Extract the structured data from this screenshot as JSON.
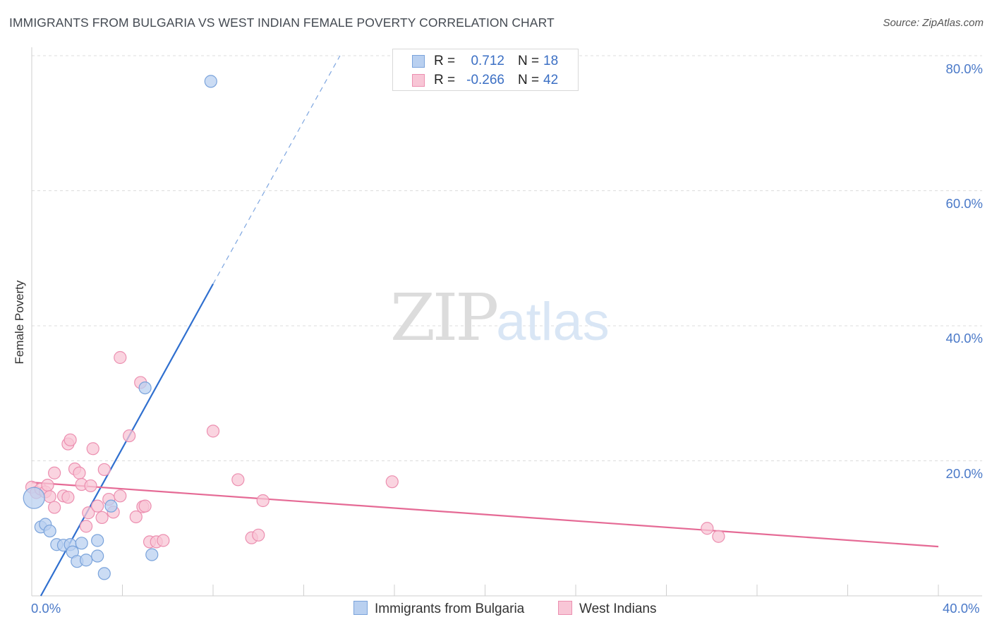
{
  "title": "IMMIGRANTS FROM BULGARIA VS WEST INDIAN FEMALE POVERTY CORRELATION CHART",
  "source": "Source: ZipAtlas.com",
  "watermark": {
    "zip": "ZIP",
    "atlas": "atlas"
  },
  "legend": {
    "rows": [
      {
        "r_label": "R =",
        "r_value": "0.712",
        "n_label": "N =",
        "n_value": "18"
      },
      {
        "r_label": "R =",
        "r_value": "-0.266",
        "n_label": "N =",
        "n_value": "42"
      }
    ]
  },
  "bottom_legend": [
    "Immigrants from Bulgaria",
    "West Indians"
  ],
  "colors": {
    "blue_fill": "#b9d0f0",
    "blue_stroke": "#7aa3db",
    "blue_line": "#2f6fcf",
    "pink_fill": "#f8c6d6",
    "pink_stroke": "#ec8fb0",
    "pink_line": "#e56a95",
    "tick_text": "#4a79c8",
    "grid": "#dcdcdc"
  },
  "chart_data": {
    "type": "scatter",
    "title": "IMMIGRANTS FROM BULGARIA VS WEST INDIAN FEMALE POVERTY CORRELATION CHART",
    "xlabel": "",
    "ylabel": "Female Poverty",
    "xlim": [
      0,
      40
    ],
    "ylim": [
      0,
      80
    ],
    "x_tick_labels": [
      "0.0%",
      "40.0%"
    ],
    "y_ticks": [
      20,
      40,
      60,
      80
    ],
    "y_tick_labels": [
      "20.0%",
      "40.0%",
      "60.0%",
      "80.0%"
    ],
    "grid": true,
    "series": [
      {
        "name": "Immigrants from Bulgaria",
        "r": 0.712,
        "n": 18,
        "trend": {
          "x0": 0.4,
          "y0": 0,
          "x1": 8.0,
          "y1": 46.2,
          "x_dash_end": 13.6,
          "y_dash_end": 80
        },
        "points": [
          [
            7.9,
            76.2
          ],
          [
            0.1,
            14.5
          ],
          [
            5.0,
            30.8
          ],
          [
            0.4,
            10.2
          ],
          [
            0.6,
            10.6
          ],
          [
            0.8,
            9.6
          ],
          [
            1.1,
            7.6
          ],
          [
            1.4,
            7.5
          ],
          [
            1.7,
            7.6
          ],
          [
            1.8,
            6.5
          ],
          [
            2.2,
            7.8
          ],
          [
            2.0,
            5.1
          ],
          [
            2.4,
            5.3
          ],
          [
            2.9,
            8.2
          ],
          [
            2.9,
            5.9
          ],
          [
            3.2,
            3.3
          ],
          [
            3.5,
            13.3
          ],
          [
            5.3,
            6.1
          ]
        ]
      },
      {
        "name": "West Indians",
        "r": -0.266,
        "n": 42,
        "trend": {
          "x0": 0,
          "y0": 16.8,
          "x1": 40,
          "y1": 7.3
        },
        "points": [
          [
            0.0,
            16.1
          ],
          [
            0.2,
            15.3
          ],
          [
            0.4,
            15.8
          ],
          [
            0.6,
            15.4
          ],
          [
            0.7,
            16.4
          ],
          [
            0.8,
            14.7
          ],
          [
            1.0,
            13.1
          ],
          [
            1.0,
            18.2
          ],
          [
            1.4,
            14.8
          ],
          [
            1.6,
            14.6
          ],
          [
            1.6,
            22.5
          ],
          [
            1.7,
            23.1
          ],
          [
            1.9,
            18.8
          ],
          [
            2.1,
            18.2
          ],
          [
            2.2,
            16.5
          ],
          [
            2.4,
            10.3
          ],
          [
            2.5,
            12.3
          ],
          [
            2.6,
            16.3
          ],
          [
            2.7,
            21.8
          ],
          [
            2.9,
            13.3
          ],
          [
            3.1,
            11.6
          ],
          [
            3.2,
            18.7
          ],
          [
            3.4,
            14.3
          ],
          [
            3.6,
            12.4
          ],
          [
            3.9,
            35.3
          ],
          [
            3.9,
            14.8
          ],
          [
            4.3,
            23.7
          ],
          [
            4.6,
            11.7
          ],
          [
            4.8,
            31.6
          ],
          [
            4.9,
            13.2
          ],
          [
            5.0,
            13.3
          ],
          [
            5.2,
            8.0
          ],
          [
            5.5,
            8.0
          ],
          [
            5.8,
            8.2
          ],
          [
            8.0,
            24.4
          ],
          [
            9.1,
            17.2
          ],
          [
            9.7,
            8.6
          ],
          [
            10.0,
            9.0
          ],
          [
            10.2,
            14.1
          ],
          [
            15.9,
            16.9
          ],
          [
            29.8,
            10.0
          ],
          [
            30.3,
            8.8
          ]
        ]
      }
    ]
  }
}
